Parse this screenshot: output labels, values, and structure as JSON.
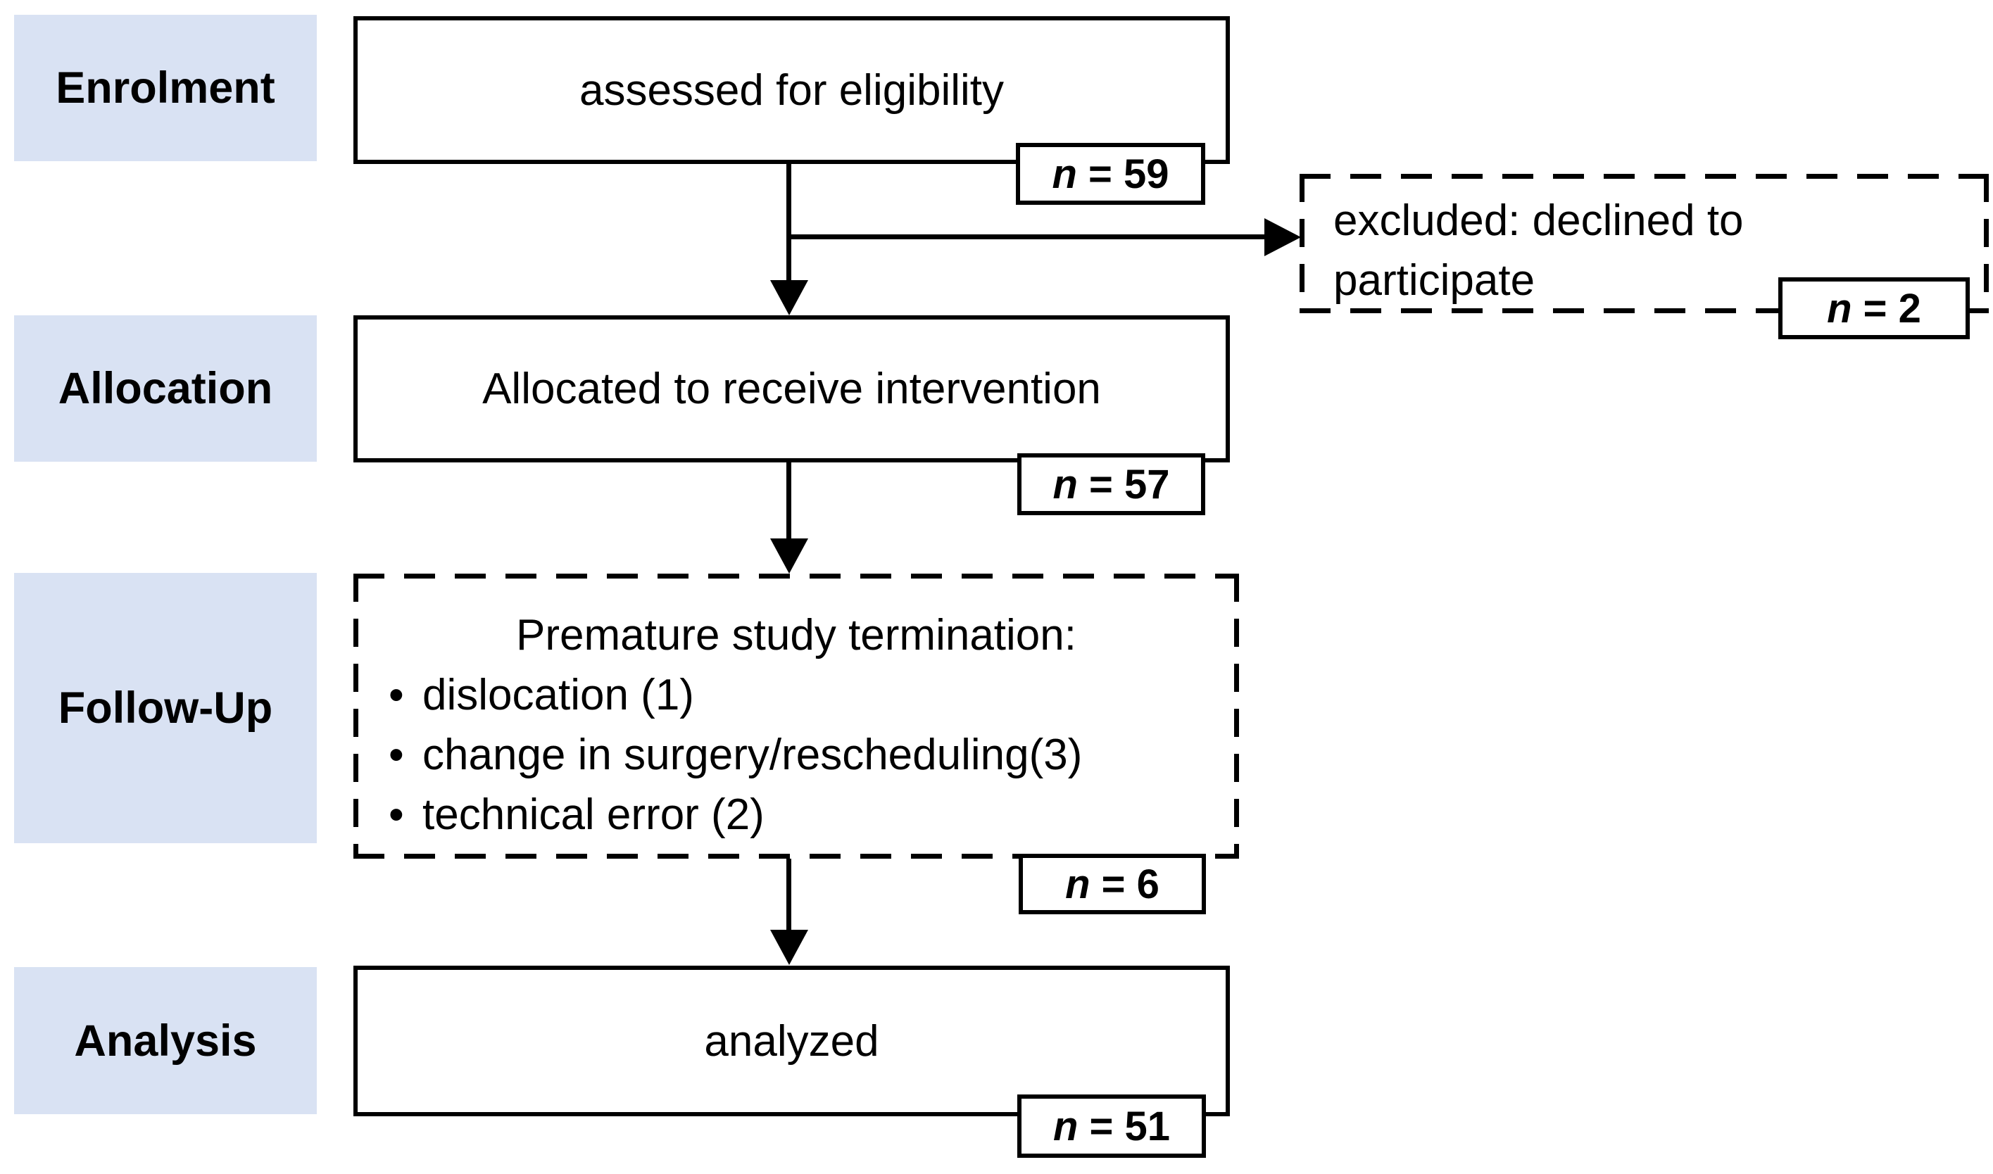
{
  "stages": [
    {
      "label": "Enrolment"
    },
    {
      "label": "Allocation"
    },
    {
      "label": "Follow-Up"
    },
    {
      "label": "Analysis"
    }
  ],
  "n_symbol": "n",
  "bullet_char": "•",
  "nodes": {
    "assessed": {
      "text": "assessed for eligibility",
      "n_value": "= 59"
    },
    "excluded": {
      "text": "excluded: declined to participate",
      "n_value": "= 2"
    },
    "allocated": {
      "text": "Allocated to receive intervention",
      "n_value": "= 57"
    },
    "followup": {
      "title": "Premature study termination:",
      "bullets": [
        "dislocation (1)",
        "change in surgery/rescheduling(3)",
        "technical error (2)"
      ],
      "n_value": "= 6"
    },
    "analyzed": {
      "text": "analyzed",
      "n_value": "= 51"
    }
  },
  "colors": {
    "stage_bg": "#d9e2f3",
    "line": "#000000",
    "canvas_bg": "#ffffff"
  }
}
